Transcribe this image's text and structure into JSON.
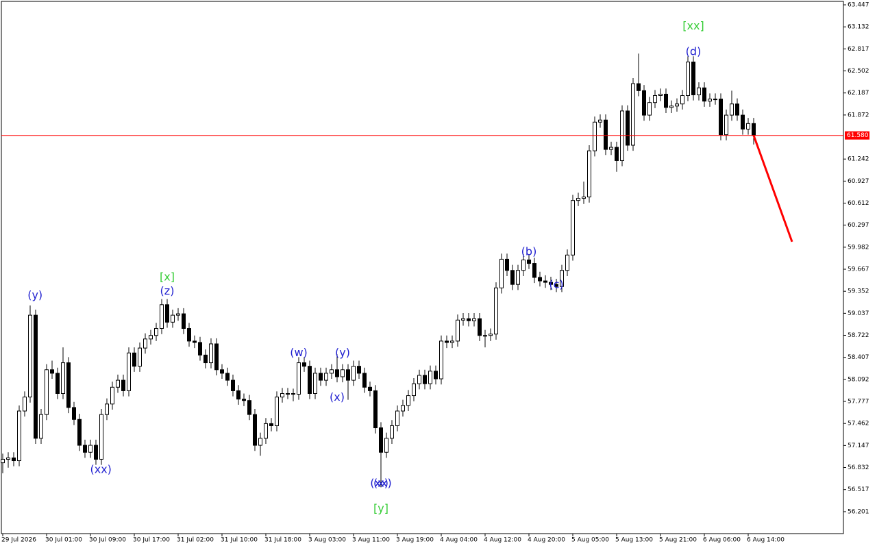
{
  "chart_data": {
    "type": "candlestick",
    "categories": [
      "29 Jul 2026",
      null,
      null,
      null,
      null,
      null,
      null,
      null,
      "30 Jul 01:00",
      null,
      null,
      null,
      null,
      null,
      null,
      null,
      "30 Jul 09:00",
      null,
      null,
      null,
      null,
      null,
      null,
      null,
      "30 Jul 17:00",
      null,
      null,
      null,
      null,
      null,
      null,
      null,
      "31 Jul 02:00",
      null,
      null,
      null,
      null,
      null,
      null,
      null,
      "31 Jul 10:00",
      null,
      null,
      null,
      null,
      null,
      null,
      null,
      "31 Jul 18:00",
      null,
      null,
      null,
      null,
      null,
      null,
      null,
      "3 Aug 03:00",
      null,
      null,
      null,
      null,
      null,
      null,
      null,
      "3 Aug 11:00",
      null,
      null,
      null,
      null,
      null,
      null,
      null,
      "3 Aug 19:00",
      null,
      null,
      null,
      null,
      null,
      null,
      null,
      "4 Aug 04:00",
      null,
      null,
      null,
      null,
      null,
      null,
      null,
      "4 Aug 12:00",
      null,
      null,
      null,
      null,
      null,
      null,
      null,
      "4 Aug 20:00",
      null,
      null,
      null,
      null,
      null,
      null,
      null,
      "5 Aug 05:00",
      null,
      null,
      null,
      null,
      null,
      null,
      null,
      "5 Aug 13:00",
      null,
      null,
      null,
      null,
      null,
      null,
      null,
      "5 Aug 21:00",
      null,
      null,
      null,
      null,
      null,
      null,
      null,
      "6 Aug 06:00",
      null,
      null,
      null,
      null,
      null,
      null,
      null,
      "6 Aug 14:00",
      null
    ],
    "open": [
      56.9,
      56.95,
      56.97,
      56.93,
      57.64,
      57.84,
      59.01,
      57.25,
      57.59,
      58.23,
      58.18,
      57.89,
      58.33,
      57.69,
      57.52,
      57.15,
      57.05,
      57.15,
      56.95,
      57.59,
      57.74,
      57.98,
      58.08,
      57.93,
      58.47,
      58.28,
      58.54,
      58.67,
      58.72,
      58.82,
      59.16,
      58.91,
      59.01,
      59.03,
      58.82,
      58.64,
      58.62,
      58.44,
      58.33,
      58.6,
      58.23,
      58.18,
      58.08,
      57.93,
      57.81,
      57.79,
      57.59,
      57.15,
      57.25,
      57.46,
      57.43,
      57.84,
      57.89,
      57.89,
      57.88,
      58.33,
      58.28,
      57.89,
      58.18,
      58.08,
      58.18,
      58.23,
      58.13,
      58.23,
      58.08,
      58.28,
      58.18,
      57.98,
      57.93,
      57.4,
      57.05,
      57.25,
      57.43,
      57.64,
      57.72,
      57.86,
      58.03,
      58.15,
      58.03,
      58.21,
      58.1,
      58.64,
      58.62,
      58.64,
      58.94,
      58.96,
      58.93,
      58.96,
      58.72,
      58.72,
      58.74,
      59.4,
      59.81,
      59.65,
      59.45,
      59.65,
      59.8,
      59.75,
      59.55,
      59.5,
      59.48,
      59.45,
      59.42,
      59.65,
      59.87,
      60.65,
      60.68,
      60.7,
      61.36,
      61.77,
      61.8,
      61.38,
      61.41,
      61.22,
      61.93,
      61.44,
      62.32,
      62.22,
      61.87,
      62.05,
      62.15,
      62.17,
      61.98,
      62.0,
      62.03,
      62.15,
      62.63,
      62.16,
      62.26,
      62.07,
      62.1,
      62.1,
      61.59,
      61.87,
      62.03,
      61.87,
      61.67,
      61.75
    ],
    "high": [
      57.03,
      57.05,
      57.05,
      57.72,
      57.92,
      59.15,
      59.09,
      57.67,
      58.31,
      58.36,
      58.26,
      58.55,
      58.41,
      57.77,
      57.6,
      57.23,
      57.23,
      57.23,
      57.67,
      57.82,
      58.06,
      58.16,
      58.16,
      58.55,
      58.55,
      58.62,
      58.75,
      58.8,
      58.9,
      59.24,
      59.24,
      59.09,
      59.11,
      59.11,
      58.9,
      58.72,
      58.7,
      58.52,
      58.68,
      58.68,
      58.31,
      58.26,
      58.16,
      58.01,
      57.89,
      57.87,
      57.67,
      57.33,
      57.54,
      57.54,
      57.92,
      57.97,
      57.97,
      57.96,
      58.41,
      58.41,
      58.36,
      58.26,
      58.26,
      58.26,
      58.31,
      58.45,
      58.31,
      58.31,
      58.36,
      58.36,
      58.26,
      58.06,
      58.01,
      57.48,
      57.33,
      57.51,
      57.72,
      57.8,
      57.94,
      58.11,
      58.23,
      58.23,
      58.29,
      58.29,
      58.72,
      58.72,
      58.72,
      59.02,
      59.04,
      59.04,
      59.04,
      59.04,
      58.8,
      58.82,
      59.48,
      59.89,
      59.89,
      59.73,
      59.73,
      59.88,
      59.88,
      59.83,
      59.63,
      59.58,
      59.56,
      59.53,
      59.73,
      59.95,
      60.73,
      60.76,
      60.92,
      61.44,
      61.85,
      61.88,
      61.88,
      61.49,
      61.49,
      62.01,
      62.01,
      62.4,
      62.75,
      62.3,
      62.13,
      62.23,
      62.25,
      62.25,
      62.08,
      62.11,
      62.23,
      62.71,
      62.71,
      62.34,
      62.34,
      62.18,
      62.18,
      62.18,
      61.95,
      62.22,
      62.11,
      61.95,
      61.83,
      61.83
    ],
    "low": [
      56.75,
      56.83,
      56.85,
      56.85,
      57.56,
      57.76,
      57.17,
      57.17,
      57.51,
      58.1,
      57.81,
      57.81,
      57.61,
      57.44,
      57.07,
      56.97,
      56.97,
      56.87,
      56.87,
      57.51,
      57.66,
      57.9,
      57.85,
      57.85,
      58.2,
      58.2,
      58.46,
      58.59,
      58.64,
      58.74,
      58.83,
      58.83,
      58.93,
      58.74,
      58.56,
      58.54,
      58.36,
      58.25,
      58.25,
      58.15,
      58.1,
      58.0,
      57.85,
      57.73,
      57.71,
      57.51,
      57.07,
      57.0,
      57.17,
      57.35,
      57.35,
      57.76,
      57.81,
      57.78,
      57.8,
      58.2,
      57.81,
      57.81,
      58.0,
      58.0,
      58.1,
      58.05,
      58.05,
      57.8,
      58.0,
      58.1,
      57.9,
      57.85,
      57.32,
      56.55,
      56.97,
      57.17,
      57.35,
      57.56,
      57.64,
      57.78,
      57.95,
      57.95,
      57.95,
      58.02,
      58.02,
      58.54,
      58.54,
      58.56,
      58.86,
      58.85,
      58.85,
      58.64,
      58.55,
      58.64,
      58.66,
      59.32,
      59.57,
      59.37,
      59.37,
      59.57,
      59.67,
      59.47,
      59.42,
      59.4,
      59.37,
      59.34,
      59.34,
      59.57,
      59.79,
      60.57,
      60.6,
      60.62,
      61.28,
      61.69,
      61.3,
      61.3,
      61.06,
      61.14,
      61.36,
      61.36,
      62.14,
      61.79,
      61.79,
      61.97,
      62.07,
      61.9,
      61.9,
      61.92,
      61.95,
      62.07,
      62.08,
      62.08,
      61.99,
      61.99,
      62.02,
      61.51,
      61.51,
      61.79,
      61.79,
      61.59,
      61.59,
      61.45
    ],
    "close": [
      56.95,
      56.97,
      56.93,
      57.64,
      57.84,
      59.01,
      57.25,
      57.59,
      58.23,
      58.18,
      57.89,
      58.33,
      57.69,
      57.52,
      57.15,
      57.05,
      57.15,
      56.95,
      57.59,
      57.74,
      57.98,
      58.08,
      57.93,
      58.47,
      58.28,
      58.54,
      58.67,
      58.72,
      58.82,
      59.16,
      58.91,
      59.01,
      59.03,
      58.82,
      58.64,
      58.62,
      58.44,
      58.33,
      58.6,
      58.23,
      58.18,
      58.08,
      57.93,
      57.81,
      57.79,
      57.59,
      57.15,
      57.25,
      57.46,
      57.43,
      57.84,
      57.89,
      57.89,
      57.88,
      58.33,
      58.28,
      57.89,
      58.18,
      58.08,
      58.18,
      58.23,
      58.13,
      58.23,
      58.08,
      58.28,
      58.18,
      57.98,
      57.93,
      57.4,
      57.05,
      57.25,
      57.43,
      57.64,
      57.72,
      57.86,
      58.03,
      58.15,
      58.03,
      58.21,
      58.1,
      58.64,
      58.62,
      58.64,
      58.94,
      58.96,
      58.93,
      58.96,
      58.72,
      58.72,
      58.74,
      59.4,
      59.81,
      59.65,
      59.45,
      59.65,
      59.8,
      59.75,
      59.55,
      59.5,
      59.48,
      59.45,
      59.42,
      59.65,
      59.87,
      60.65,
      60.68,
      60.7,
      61.36,
      61.77,
      61.8,
      61.38,
      61.41,
      61.22,
      61.93,
      61.44,
      62.32,
      62.22,
      61.87,
      62.05,
      62.15,
      62.17,
      61.98,
      62.0,
      62.03,
      62.15,
      62.63,
      62.16,
      62.26,
      62.07,
      62.1,
      62.1,
      61.59,
      61.87,
      62.03,
      61.87,
      61.67,
      61.75,
      61.58
    ],
    "ylim": [
      55.897,
      63.516
    ],
    "yticks": [
      63.447,
      63.132,
      62.817,
      62.502,
      62.187,
      61.872,
      61.242,
      60.927,
      60.612,
      60.297,
      59.982,
      59.667,
      59.352,
      59.037,
      58.722,
      58.407,
      58.092,
      57.777,
      57.462,
      57.147,
      56.832,
      56.517,
      56.201
    ],
    "price_line": {
      "value": 61.58,
      "label": "61.580",
      "color": "#ff0000"
    },
    "projection": {
      "x": [
        137,
        144
      ],
      "values": [
        61.58,
        60.06
      ],
      "color": "#ff0000"
    },
    "annotations": [
      {
        "text": "(y)",
        "x": 5.9,
        "y": 59.29,
        "color": "#2020d0"
      },
      {
        "text": "[x]",
        "x": 30,
        "y": 59.55,
        "color": "#33cc33"
      },
      {
        "text": "(z)",
        "x": 30,
        "y": 59.35,
        "color": "#2020d0"
      },
      {
        "text": "(xx)",
        "x": 17.9,
        "y": 56.8,
        "color": "#2020d0"
      },
      {
        "text": "(w)",
        "x": 54,
        "y": 58.47,
        "color": "#2020d0"
      },
      {
        "text": "(y)",
        "x": 62,
        "y": 58.47,
        "color": "#2020d0"
      },
      {
        "text": "(x)",
        "x": 61,
        "y": 57.83,
        "color": "#2020d0"
      },
      {
        "text": "(xx)",
        "x": 69,
        "y": 56.6,
        "color": "#2020d0"
      },
      {
        "text": "(x)",
        "x": 69,
        "y": 56.6,
        "color": "#2020d0"
      },
      {
        "text": "[y]",
        "x": 69,
        "y": 56.24,
        "color": "#33cc33"
      },
      {
        "text": "(b)",
        "x": 96,
        "y": 59.91,
        "color": "#2020d0"
      },
      {
        "text": "(c)",
        "x": 101,
        "y": 59.44,
        "color": "#2020d0"
      },
      {
        "text": "[xx]",
        "x": 126,
        "y": 63.14,
        "color": "#33cc33"
      },
      {
        "text": "(d)",
        "x": 126,
        "y": 62.77,
        "color": "#2020d0"
      }
    ]
  }
}
